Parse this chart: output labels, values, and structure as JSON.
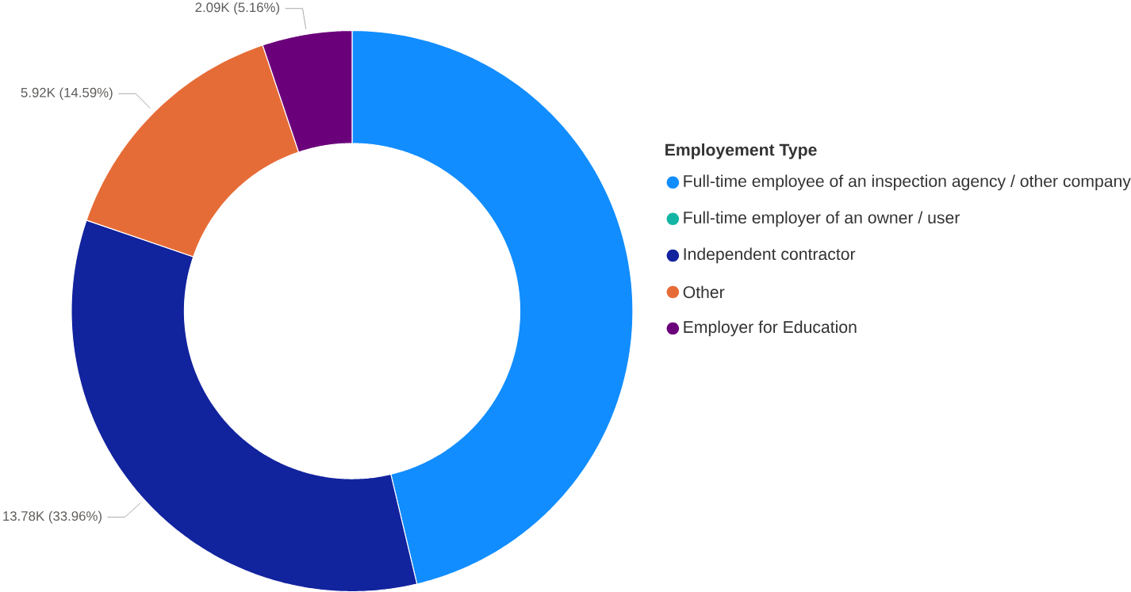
{
  "chart_data": {
    "type": "donut",
    "categories": [
      "Full-time employee of an inspection agency / other company",
      "Full-time employer of an owner / user",
      "Independent contractor",
      "Other",
      "Employer for Education"
    ],
    "values": [
      46.29,
      0,
      33.96,
      14.59,
      5.16
    ],
    "value_labels": [
      null,
      null,
      "13.78K (33.96%)",
      "5.92K (14.59%)",
      "2.09K (5.16%)"
    ],
    "colors": [
      "#118dff",
      "#12b5a4",
      "#12239e",
      "#e66c37",
      "#6b007b"
    ],
    "legend_title": "Employement Type",
    "legend": "right"
  }
}
